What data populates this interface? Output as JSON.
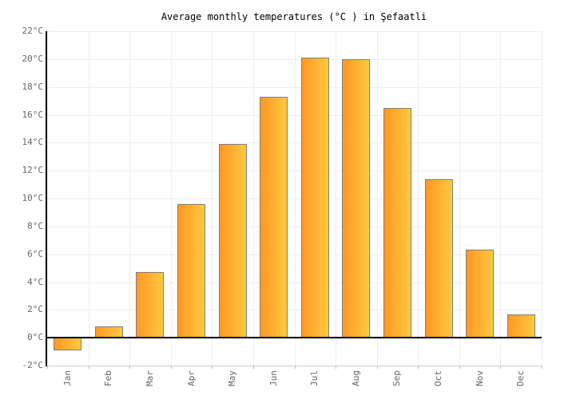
{
  "chart_data": {
    "type": "bar",
    "title": "Average monthly temperatures (°C ) in Şefaatli",
    "categories": [
      "Jan",
      "Feb",
      "Mar",
      "Apr",
      "May",
      "Jun",
      "Jul",
      "Aug",
      "Sep",
      "Oct",
      "Nov",
      "Dec"
    ],
    "values": [
      -0.9,
      0.8,
      4.7,
      9.6,
      13.9,
      17.3,
      20.1,
      20.0,
      16.5,
      11.4,
      6.3,
      1.7
    ],
    "xlabel": "",
    "ylabel": "",
    "ylim": [
      -2,
      22
    ],
    "ytick_step": 2,
    "ytick_suffix": "°C",
    "legend": "none",
    "grid": "on",
    "colors": {
      "bar_gradient_left": "#ff9726",
      "bar_gradient_right": "#ffc93e",
      "bar_border": "#7f7f7f",
      "hgrid": "#eeeeee",
      "vgrid": "#efefef",
      "zero_line": "#000000",
      "y_axis_line": "#000000",
      "x_axis_line": "#cccccc",
      "tick_label": "#666666",
      "title": "#000000",
      "background": "#ffffff"
    }
  }
}
